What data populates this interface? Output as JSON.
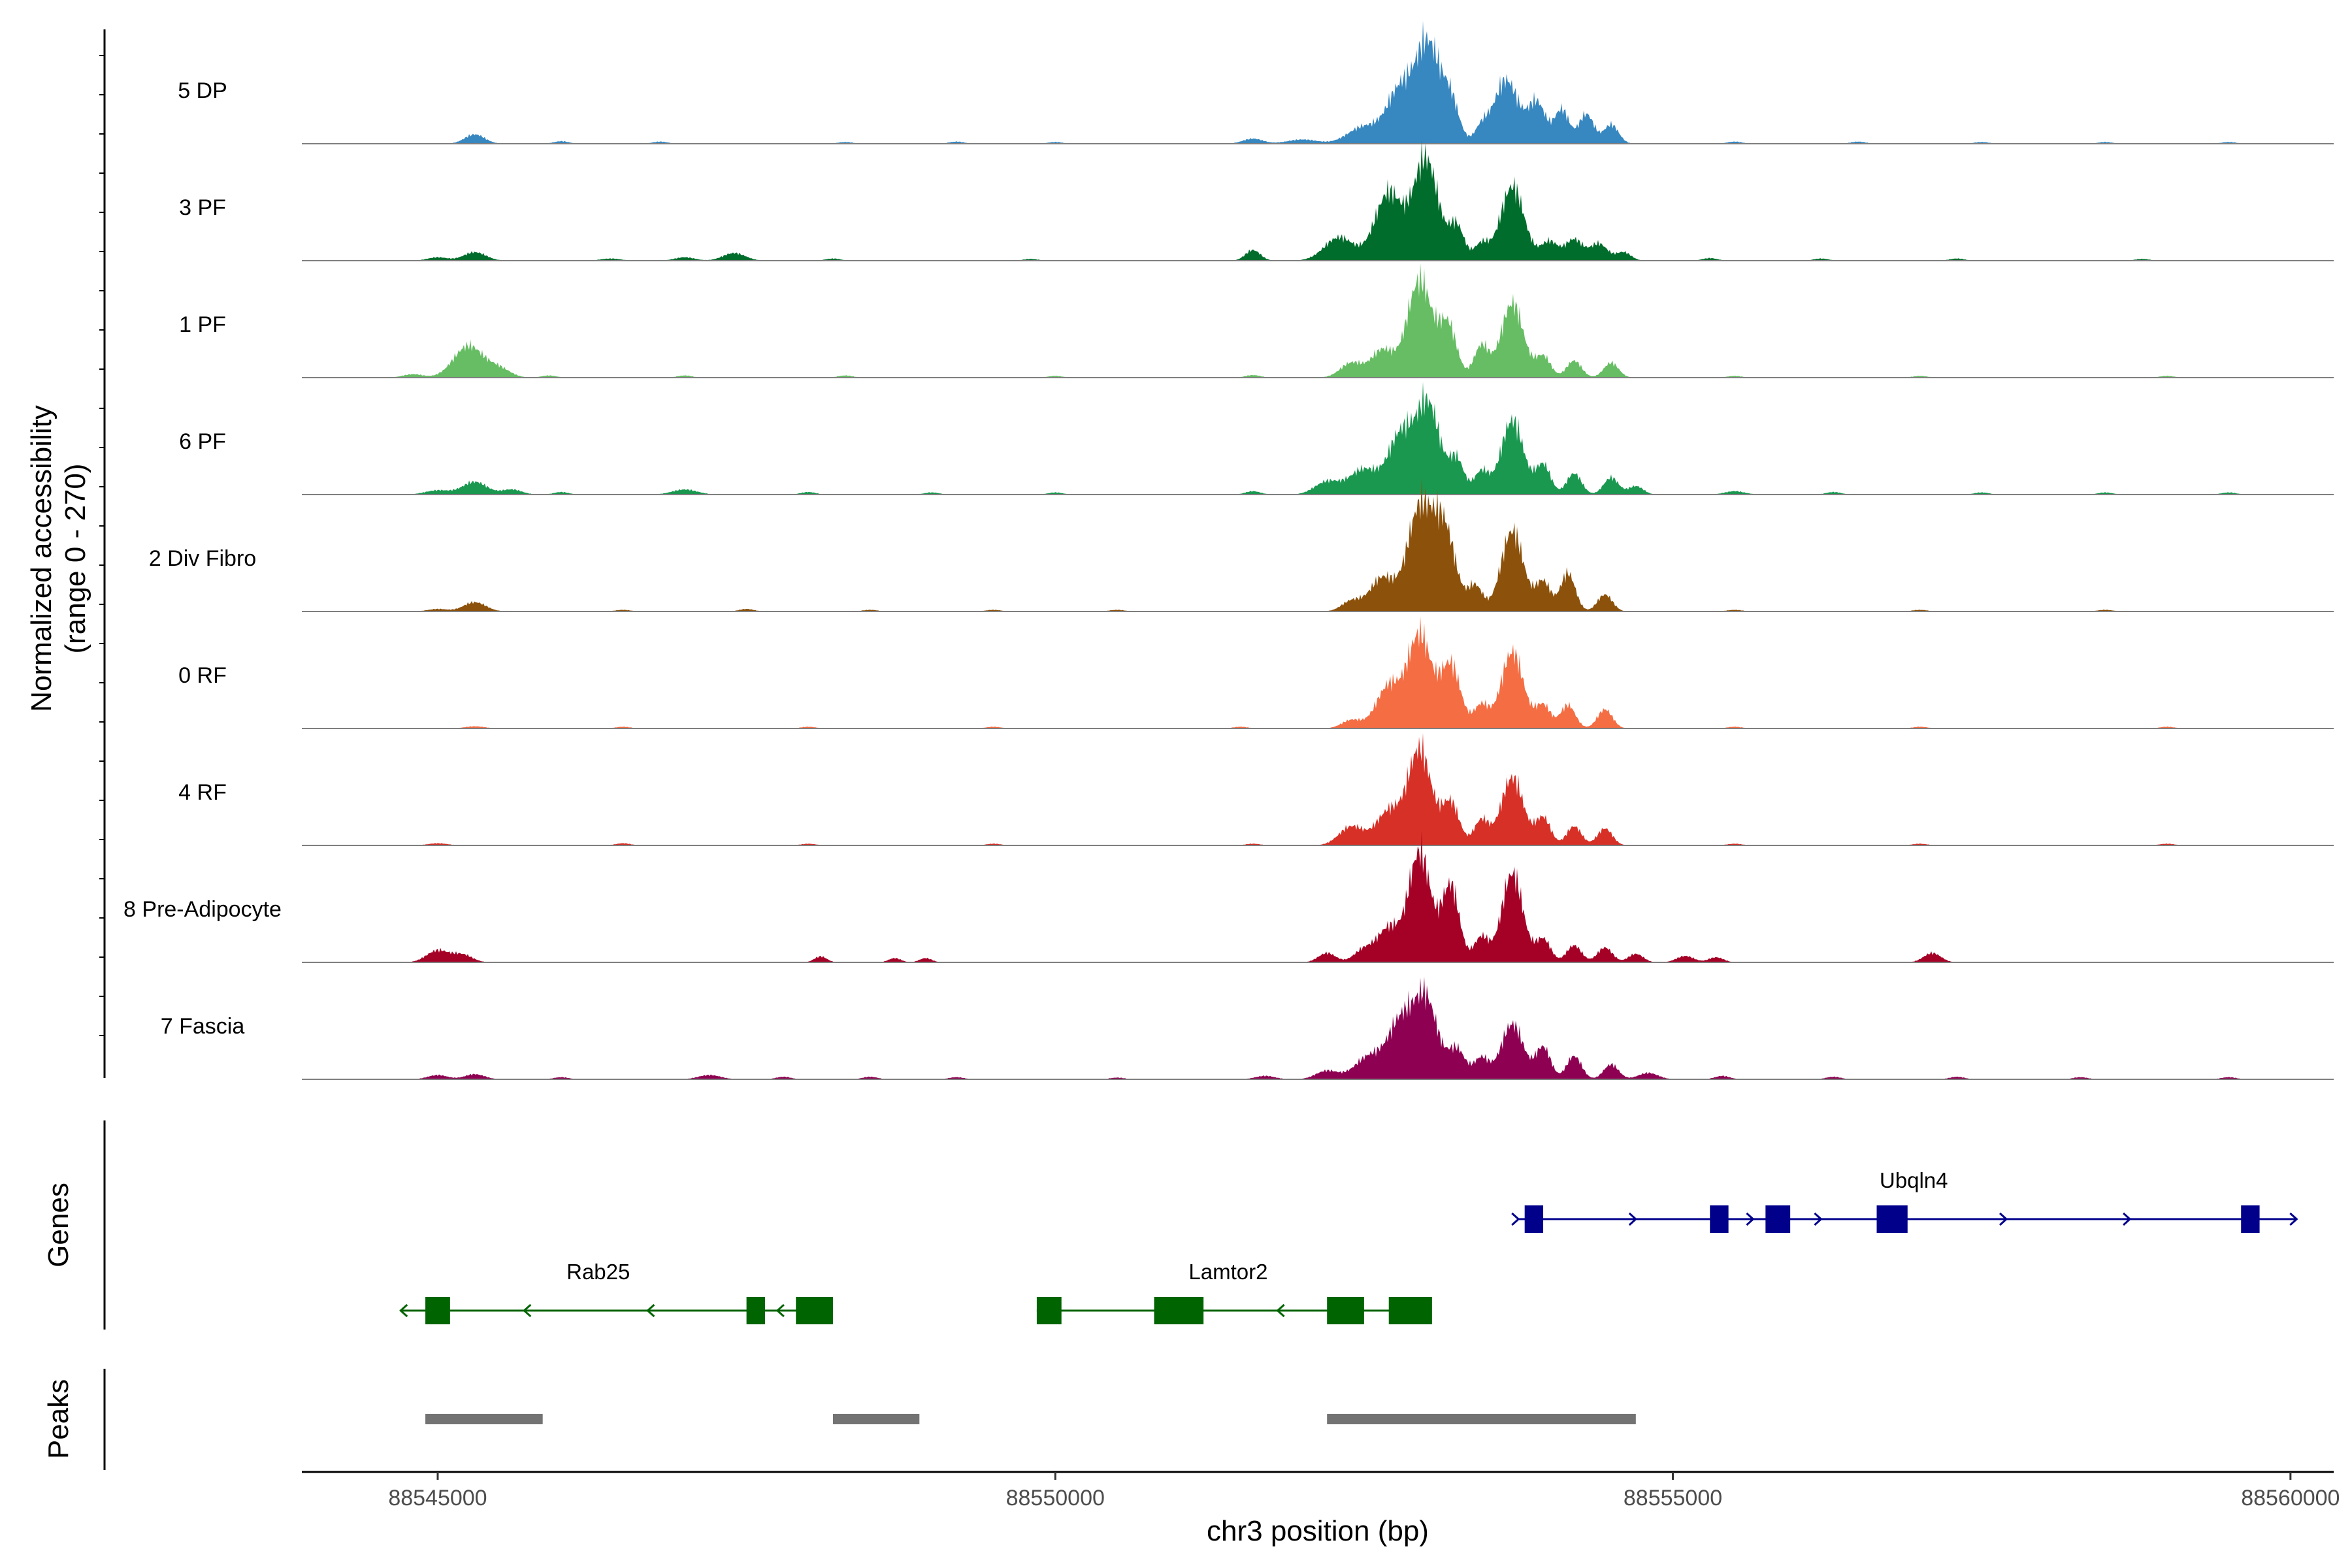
{
  "chart_data": {
    "type": "area",
    "title": "",
    "xlabel": "chr3 position (bp)",
    "ylabel": "Normalized accessibility",
    "ylabel_range": "(range 0 - 270)",
    "ylim": [
      0,
      270
    ],
    "xlim": [
      88543900,
      88560350
    ],
    "x_ticks": [
      88545000,
      88550000,
      88555000,
      88560000
    ],
    "x_tick_labels": [
      "88545000",
      "88550000",
      "88555000",
      "88560000"
    ],
    "tracks": [
      {
        "name": "5 DP",
        "color": "#3787c0",
        "peaks": [
          [
            88545300,
            22,
            80
          ],
          [
            88546000,
            6,
            60
          ],
          [
            88546800,
            5,
            60
          ],
          [
            88548300,
            4,
            60
          ],
          [
            88549200,
            5,
            60
          ],
          [
            88550000,
            4,
            60
          ],
          [
            88551600,
            12,
            80
          ],
          [
            88552000,
            10,
            120
          ],
          [
            88552500,
            40,
            130
          ],
          [
            88552800,
            130,
            110
          ],
          [
            88553020,
            225,
            95
          ],
          [
            88553200,
            95,
            70
          ],
          [
            88553450,
            35,
            55
          ],
          [
            88553650,
            150,
            100
          ],
          [
            88553900,
            95,
            70
          ],
          [
            88554100,
            80,
            60
          ],
          [
            88554300,
            70,
            60
          ],
          [
            88554500,
            45,
            60
          ],
          [
            88555500,
            5,
            60
          ],
          [
            88556500,
            5,
            60
          ],
          [
            88557500,
            4,
            60
          ],
          [
            88558500,
            4,
            60
          ],
          [
            88559500,
            4,
            60
          ]
        ]
      },
      {
        "name": "3 PF",
        "color": "#006d2c",
        "peaks": [
          [
            88545000,
            8,
            80
          ],
          [
            88545300,
            20,
            90
          ],
          [
            88546400,
            5,
            80
          ],
          [
            88547000,
            8,
            80
          ],
          [
            88547400,
            18,
            90
          ],
          [
            88548200,
            5,
            60
          ],
          [
            88549800,
            4,
            60
          ],
          [
            88551600,
            25,
            60
          ],
          [
            88552300,
            55,
            120
          ],
          [
            88552700,
            160,
            110
          ],
          [
            88553000,
            240,
            100
          ],
          [
            88553250,
            80,
            60
          ],
          [
            88553450,
            40,
            60
          ],
          [
            88553700,
            175,
            95
          ],
          [
            88554000,
            45,
            70
          ],
          [
            88554200,
            50,
            70
          ],
          [
            88554400,
            40,
            70
          ],
          [
            88554600,
            20,
            60
          ],
          [
            88555300,
            6,
            60
          ],
          [
            88556200,
            5,
            60
          ],
          [
            88557300,
            5,
            60
          ],
          [
            88558800,
            4,
            60
          ],
          [
            88559800,
            4,
            60
          ]
        ]
      },
      {
        "name": "1 PF",
        "color": "#66bd63",
        "peaks": [
          [
            88544800,
            8,
            80
          ],
          [
            88545250,
            75,
            120
          ],
          [
            88545500,
            20,
            90
          ],
          [
            88545900,
            5,
            60
          ],
          [
            88547000,
            5,
            60
          ],
          [
            88548300,
            5,
            60
          ],
          [
            88550000,
            4,
            60
          ],
          [
            88551600,
            6,
            60
          ],
          [
            88552400,
            35,
            90
          ],
          [
            88552650,
            65,
            90
          ],
          [
            88552950,
            230,
            100
          ],
          [
            88553180,
            120,
            70
          ],
          [
            88553450,
            75,
            60
          ],
          [
            88553700,
            175,
            90
          ],
          [
            88553950,
            50,
            60
          ],
          [
            88554200,
            40,
            60
          ],
          [
            88554500,
            35,
            60
          ],
          [
            88555500,
            4,
            60
          ],
          [
            88557000,
            4,
            60
          ],
          [
            88559000,
            4,
            60
          ]
        ]
      },
      {
        "name": "6 PF",
        "color": "#1a9850",
        "peaks": [
          [
            88545000,
            10,
            100
          ],
          [
            88545300,
            30,
            100
          ],
          [
            88545600,
            12,
            80
          ],
          [
            88546000,
            6,
            60
          ],
          [
            88547000,
            12,
            100
          ],
          [
            88548000,
            6,
            60
          ],
          [
            88549000,
            5,
            60
          ],
          [
            88550000,
            5,
            60
          ],
          [
            88551600,
            8,
            60
          ],
          [
            88552200,
            30,
            100
          ],
          [
            88552500,
            60,
            120
          ],
          [
            88552800,
            140,
            100
          ],
          [
            88553020,
            210,
            95
          ],
          [
            88553250,
            80,
            60
          ],
          [
            88553450,
            55,
            60
          ],
          [
            88553700,
            175,
            90
          ],
          [
            88553950,
            70,
            60
          ],
          [
            88554200,
            50,
            60
          ],
          [
            88554500,
            40,
            60
          ],
          [
            88554700,
            20,
            60
          ],
          [
            88555500,
            8,
            80
          ],
          [
            88556300,
            6,
            60
          ],
          [
            88557500,
            5,
            60
          ],
          [
            88558500,
            5,
            60
          ],
          [
            88559500,
            5,
            60
          ]
        ]
      },
      {
        "name": "2 Div Fibro",
        "color": "#8c510a",
        "peaks": [
          [
            88545000,
            6,
            80
          ],
          [
            88545300,
            22,
            90
          ],
          [
            88546500,
            4,
            60
          ],
          [
            88547500,
            6,
            60
          ],
          [
            88548500,
            4,
            60
          ],
          [
            88549500,
            4,
            60
          ],
          [
            88550500,
            4,
            60
          ],
          [
            88552400,
            25,
            80
          ],
          [
            88552650,
            80,
            100
          ],
          [
            88552950,
            240,
            100
          ],
          [
            88553150,
            190,
            90
          ],
          [
            88553400,
            60,
            60
          ],
          [
            88553700,
            190,
            90
          ],
          [
            88553950,
            70,
            60
          ],
          [
            88554150,
            90,
            60
          ],
          [
            88554450,
            40,
            60
          ],
          [
            88555500,
            4,
            60
          ],
          [
            88557000,
            4,
            60
          ],
          [
            88558500,
            4,
            60
          ]
        ]
      },
      {
        "name": "0 RF",
        "color": "#f46d43",
        "peaks": [
          [
            88545300,
            5,
            80
          ],
          [
            88546500,
            4,
            60
          ],
          [
            88548000,
            4,
            60
          ],
          [
            88549500,
            4,
            60
          ],
          [
            88551500,
            4,
            60
          ],
          [
            88552400,
            20,
            80
          ],
          [
            88552700,
            100,
            100
          ],
          [
            88552950,
            220,
            95
          ],
          [
            88553200,
            150,
            80
          ],
          [
            88553450,
            55,
            60
          ],
          [
            88553700,
            180,
            90
          ],
          [
            88553950,
            55,
            60
          ],
          [
            88554150,
            55,
            60
          ],
          [
            88554450,
            45,
            60
          ],
          [
            88555500,
            4,
            60
          ],
          [
            88557000,
            4,
            60
          ],
          [
            88559000,
            4,
            60
          ]
        ]
      },
      {
        "name": "4 RF",
        "color": "#d73027",
        "peaks": [
          [
            88545000,
            5,
            80
          ],
          [
            88546500,
            5,
            60
          ],
          [
            88548000,
            4,
            60
          ],
          [
            88549500,
            4,
            60
          ],
          [
            88551600,
            4,
            60
          ],
          [
            88552400,
            45,
            100
          ],
          [
            88552700,
            80,
            100
          ],
          [
            88552950,
            225,
            95
          ],
          [
            88553200,
            100,
            70
          ],
          [
            88553450,
            60,
            60
          ],
          [
            88553700,
            160,
            90
          ],
          [
            88553950,
            65,
            60
          ],
          [
            88554200,
            45,
            60
          ],
          [
            88554450,
            40,
            60
          ],
          [
            88555500,
            4,
            60
          ],
          [
            88557000,
            4,
            60
          ],
          [
            88559000,
            4,
            60
          ]
        ]
      },
      {
        "name": "8 Pre-Adipocyte",
        "color": "#a50026",
        "peaks": [
          [
            88545000,
            28,
            90
          ],
          [
            88545200,
            18,
            80
          ],
          [
            88548100,
            14,
            50
          ],
          [
            88548700,
            10,
            50
          ],
          [
            88548950,
            10,
            50
          ],
          [
            88552200,
            22,
            70
          ],
          [
            88552500,
            30,
            80
          ],
          [
            88552700,
            80,
            90
          ],
          [
            88552950,
            260,
            90
          ],
          [
            88553200,
            180,
            70
          ],
          [
            88553450,
            60,
            60
          ],
          [
            88553700,
            210,
            85
          ],
          [
            88553950,
            55,
            60
          ],
          [
            88554200,
            40,
            60
          ],
          [
            88554450,
            35,
            60
          ],
          [
            88554700,
            20,
            60
          ],
          [
            88555100,
            15,
            70
          ],
          [
            88555350,
            12,
            60
          ],
          [
            88557100,
            22,
            70
          ]
        ]
      },
      {
        "name": "7 Fascia",
        "color": "#8e0152",
        "peaks": [
          [
            88545000,
            10,
            80
          ],
          [
            88545300,
            12,
            80
          ],
          [
            88546000,
            5,
            60
          ],
          [
            88547200,
            10,
            90
          ],
          [
            88547800,
            6,
            60
          ],
          [
            88548500,
            6,
            60
          ],
          [
            88549200,
            5,
            60
          ],
          [
            88550500,
            4,
            60
          ],
          [
            88551700,
            8,
            80
          ],
          [
            88552200,
            20,
            90
          ],
          [
            88552550,
            55,
            120
          ],
          [
            88552800,
            130,
            100
          ],
          [
            88553000,
            185,
            95
          ],
          [
            88553250,
            70,
            70
          ],
          [
            88553450,
            50,
            60
          ],
          [
            88553700,
            130,
            90
          ],
          [
            88553950,
            75,
            60
          ],
          [
            88554200,
            55,
            60
          ],
          [
            88554500,
            35,
            60
          ],
          [
            88554800,
            15,
            80
          ],
          [
            88555400,
            8,
            60
          ],
          [
            88556300,
            6,
            60
          ],
          [
            88557300,
            6,
            60
          ],
          [
            88558300,
            5,
            60
          ],
          [
            88559500,
            5,
            60
          ]
        ]
      }
    ],
    "genes": [
      {
        "name": "Ubqln4",
        "strand": "+",
        "color": "#00008b",
        "start": 88553750,
        "end": 88560050,
        "exons": [
          [
            88553800,
            88553950
          ],
          [
            88555300,
            88555450
          ],
          [
            88555750,
            88555950
          ],
          [
            88556650,
            88556900
          ],
          [
            88559600,
            88559750
          ]
        ],
        "arrows": [
          88553750,
          88554700,
          88555650,
          88556200,
          88557700,
          88558700,
          88560050
        ]
      },
      {
        "name": "Rab25",
        "strand": "-",
        "color": "#006400",
        "start": 88544700,
        "end": 88548200,
        "exons": [
          [
            88544900,
            88545100
          ],
          [
            88547500,
            88547650
          ],
          [
            88547900,
            88548200
          ]
        ],
        "arrows": [
          88544700,
          88545700,
          88546700,
          88547750
        ]
      },
      {
        "name": "Lamtor2",
        "strand": "-",
        "color": "#006400",
        "start": 88549850,
        "end": 88552950,
        "exons": [
          [
            88549850,
            88550050
          ],
          [
            88550800,
            88551200
          ],
          [
            88552200,
            88552500
          ],
          [
            88552700,
            88553050
          ]
        ],
        "arrows": [
          88551800
        ]
      }
    ],
    "peak_regions": [
      [
        88544900,
        88545850
      ],
      [
        88548200,
        88548900
      ],
      [
        88552200,
        88554700
      ]
    ],
    "panel_labels": {
      "genes": "Genes",
      "peaks": "Peaks"
    }
  }
}
